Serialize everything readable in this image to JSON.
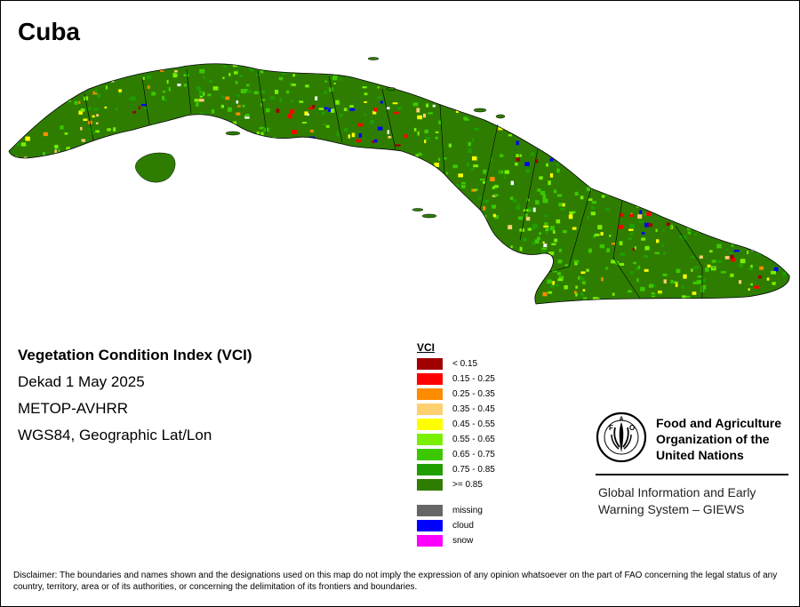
{
  "title": "Cuba",
  "map": {
    "country_name": "Cuba",
    "indicator": "VCI",
    "colors": {
      "vci_ge_085": "#2e7d00",
      "vci_075_085": "#1f9e00",
      "vci_065_075": "#3cc800",
      "vci_055_065": "#78f000",
      "vci_045_055": "#ffff00",
      "vci_035_045": "#ffd070",
      "vci_025_035": "#ff8c00",
      "vci_015_025": "#ff0000",
      "vci_lt_015": "#a00000",
      "missing": "#666666",
      "cloud": "#0000ff",
      "snow": "#ff00ff",
      "boundary": "#000000"
    }
  },
  "info": {
    "line1": "Vegetation Condition Index (VCI)",
    "line2": "Dekad 1 May 2025",
    "line3": "METOP-AVHRR",
    "line4": "WGS84, Geographic Lat/Lon"
  },
  "legend": {
    "header": "VCI",
    "classes": [
      {
        "label": "< 0.15",
        "color": "#a00000"
      },
      {
        "label": "0.15 - 0.25",
        "color": "#ff0000"
      },
      {
        "label": "0.25 - 0.35",
        "color": "#ff8c00"
      },
      {
        "label": "0.35 - 0.45",
        "color": "#ffd070"
      },
      {
        "label": "0.45 - 0.55",
        "color": "#ffff00"
      },
      {
        "label": "0.55 - 0.65",
        "color": "#78f000"
      },
      {
        "label": "0.65 - 0.75",
        "color": "#3cc800"
      },
      {
        "label": "0.75 - 0.85",
        "color": "#1f9e00"
      },
      {
        "label": ">= 0.85",
        "color": "#2e7d00"
      }
    ],
    "other": [
      {
        "label": "missing",
        "color": "#666666"
      },
      {
        "label": "cloud",
        "color": "#0000ff"
      },
      {
        "label": "snow",
        "color": "#ff00ff"
      }
    ]
  },
  "fao": {
    "logo_text": "FAO",
    "motto": "FIAT PANIS",
    "name": "Food and Agriculture Organization of the United Nations",
    "giews": "Global Information and Early Warning System – GIEWS"
  },
  "disclaimer": "Disclaimer: The boundaries and names shown and the designations used on this map do not imply the expression of any opinion whatsoever on the part of FAO concerning the legal status of any country, territory, area or of its authorities, or concerning the delimitation of its frontiers and boundaries."
}
